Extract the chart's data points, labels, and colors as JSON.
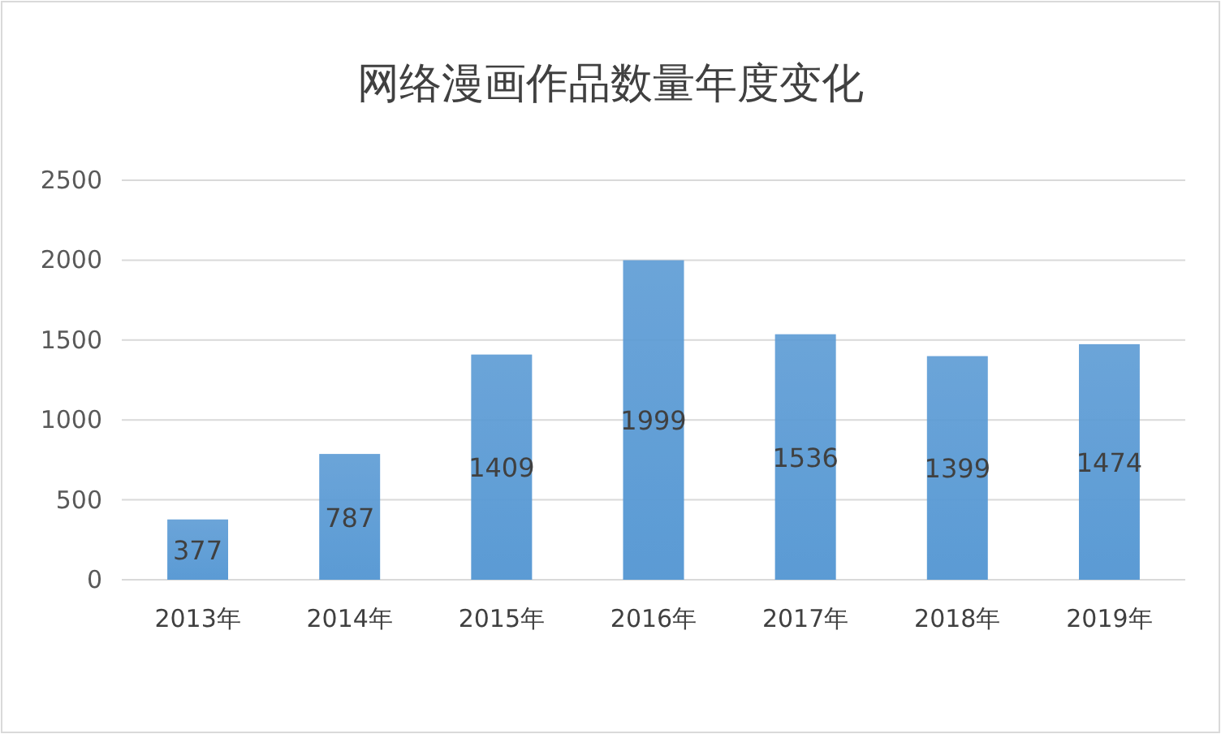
{
  "chart_data": {
    "type": "bar",
    "title": "网络漫画作品数量年度变化",
    "categories": [
      "2013年",
      "2014年",
      "2015年",
      "2016年",
      "2017年",
      "2018年",
      "2019年"
    ],
    "values": [
      377,
      787,
      1409,
      1999,
      1536,
      1399,
      1474
    ],
    "color": "#5b9bd5",
    "ylim": [
      0,
      2500
    ],
    "yticks": [
      0,
      500,
      1000,
      1500,
      2000,
      2500
    ],
    "grid": "y",
    "data_labels": true
  }
}
